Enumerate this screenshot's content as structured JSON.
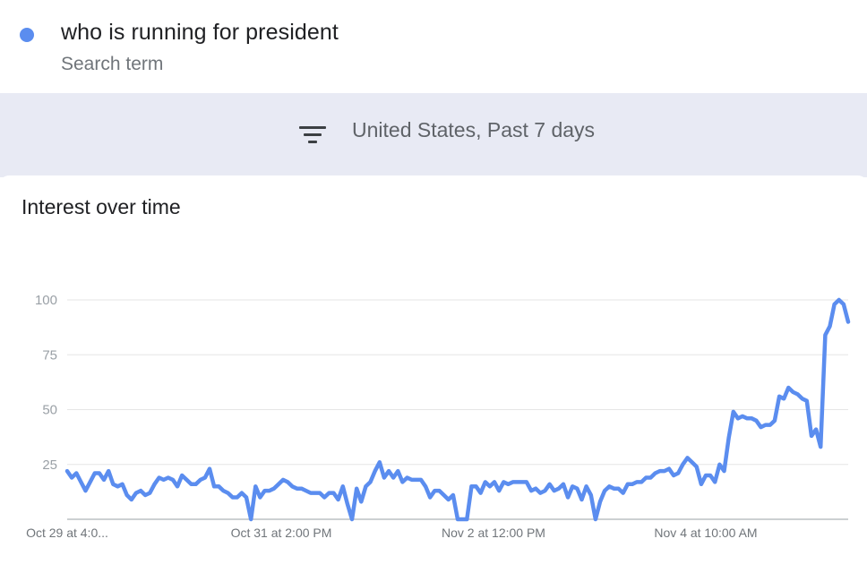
{
  "search_term": {
    "name": "who is running for president",
    "subtitle": "Search term",
    "color": "#5b8def"
  },
  "filter": {
    "icon": "filter-icon",
    "text": "United States, Past 7 days"
  },
  "card": {
    "title": "Interest over time"
  },
  "chart_data": {
    "type": "line",
    "title": "Interest over time",
    "xlabel": "",
    "ylabel": "",
    "ylim": [
      0,
      100
    ],
    "yticks": [
      25,
      50,
      75,
      100
    ],
    "xticks": [
      "Oct 29 at 4:0...",
      "Oct 31 at 2:00 PM",
      "Nov 2 at 12:00 PM",
      "Nov 4 at 10:00 AM"
    ],
    "grid": true,
    "legend": "none",
    "series": [
      {
        "color": "#5b8def",
        "values": [
          22,
          19,
          21,
          17,
          13,
          17,
          21,
          21,
          18,
          22,
          16,
          15,
          16,
          11,
          9,
          12,
          13,
          11,
          12,
          16,
          19,
          18,
          19,
          18,
          15,
          20,
          18,
          16,
          16,
          18,
          19,
          23,
          15,
          15,
          13,
          12,
          10,
          10,
          12,
          10,
          0,
          15,
          10,
          13,
          13,
          14,
          16,
          18,
          17,
          15,
          14,
          14,
          13,
          12,
          12,
          12,
          10,
          12,
          12,
          9,
          15,
          7,
          0,
          14,
          8,
          15,
          17,
          22,
          26,
          19,
          22,
          19,
          22,
          17,
          19,
          18,
          18,
          18,
          15,
          10,
          13,
          13,
          11,
          9,
          11,
          0,
          0,
          0,
          15,
          15,
          12,
          17,
          15,
          17,
          13,
          17,
          16,
          17,
          17,
          17,
          17,
          13,
          14,
          12,
          13,
          16,
          13,
          14,
          16,
          10,
          15,
          14,
          9,
          15,
          11,
          0,
          8,
          13,
          15,
          14,
          14,
          12,
          16,
          16,
          17,
          17,
          19,
          19,
          21,
          22,
          22,
          23,
          20,
          21,
          25,
          28,
          26,
          24,
          16,
          20,
          20,
          17,
          25,
          22,
          37,
          49,
          46,
          47,
          46,
          46,
          45,
          42,
          43,
          43,
          45,
          56,
          55,
          60,
          58,
          57,
          55,
          54,
          38,
          41,
          33,
          84,
          88,
          98,
          100,
          98,
          90
        ]
      }
    ]
  }
}
